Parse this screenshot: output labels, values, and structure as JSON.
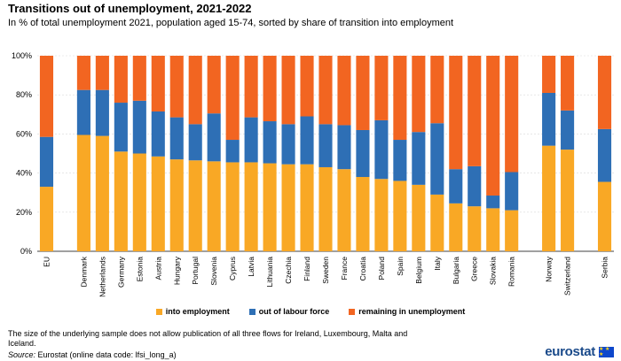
{
  "header": {
    "title": "Transitions out of unemployment, 2021-2022",
    "subtitle": "In % of total unemployment 2021, population aged 15-74, sorted by share of transition into employment"
  },
  "colors": {
    "into_employment": "#f9a825",
    "out_of_labour_force": "#2e6fb5",
    "remaining_in_unemployment": "#f26521"
  },
  "chart_data": {
    "type": "bar",
    "stacked": true,
    "categories": [
      "EU",
      "Denmark",
      "Netherlands",
      "Germany",
      "Estonia",
      "Austria",
      "Hungary",
      "Portugal",
      "Slovenia",
      "Cyprus",
      "Latvia",
      "Lithuania",
      "Czechia",
      "Finland",
      "Sweden",
      "France",
      "Croatia",
      "Poland",
      "Spain",
      "Belgium",
      "Italy",
      "Bulgaria",
      "Greece",
      "Slovakia",
      "Romania",
      "Norway",
      "Switzerland",
      "Serbia"
    ],
    "groups_after": [
      0,
      24,
      26
    ],
    "series": [
      {
        "name": "into employment",
        "color": "#f9a825",
        "values": [
          33,
          59.5,
          59,
          51,
          50,
          48.5,
          47,
          46.5,
          46,
          45.5,
          45.5,
          45,
          44.5,
          44.5,
          43,
          42,
          38,
          37,
          36,
          34,
          29,
          24.5,
          23,
          22,
          21,
          54,
          52,
          35.5
        ]
      },
      {
        "name": "out of labour force",
        "color": "#2e6fb5",
        "values": [
          25.5,
          23,
          23.5,
          25,
          27,
          23,
          21.5,
          18.5,
          24.5,
          11.5,
          23,
          21.5,
          20.5,
          24.5,
          22,
          22.5,
          24,
          30,
          21,
          27,
          36.5,
          17.5,
          20.5,
          6.5,
          19.5,
          27,
          20,
          27
        ]
      },
      {
        "name": "remaining in unemployment",
        "color": "#f26521",
        "values": [
          41.5,
          17.5,
          17.5,
          24,
          23,
          28.5,
          31.5,
          35,
          29.5,
          43,
          31.5,
          33.5,
          35,
          31,
          35,
          35.5,
          38,
          33,
          43,
          39,
          34.5,
          58,
          56.5,
          71.5,
          59.5,
          19,
          28,
          37.5
        ]
      }
    ],
    "yticks": [
      "0%",
      "20%",
      "40%",
      "60%",
      "80%",
      "100%"
    ],
    "ylim": [
      0,
      100
    ],
    "grid": true,
    "legend_position": "bottom"
  },
  "legend": {
    "into_employment": "into employment",
    "out_of_labour_force": "out of labour force",
    "remaining_in_unemployment": "remaining in unemployment"
  },
  "footer": {
    "note": "The size of the underlying  sample does not allow publication of all three flows for Ireland,  Luxembourg,  Malta and Iceland.",
    "source_label": "Source:",
    "source_text": " Eurostat (online data code: lfsi_long_a)",
    "logo_text": "eurostat",
    "flag_stars": "★ ★ ★"
  }
}
